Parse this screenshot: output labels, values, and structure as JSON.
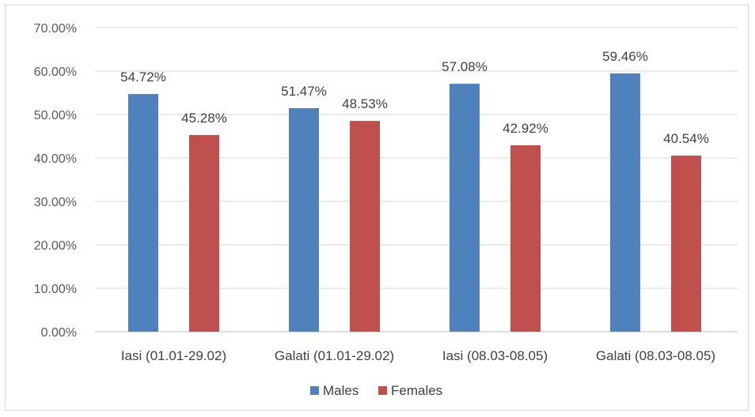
{
  "chart_data": {
    "type": "bar",
    "title": "",
    "xlabel": "",
    "ylabel": "",
    "categories": [
      "Iasi (01.01-29.02)",
      "Galati (01.01-29.02)",
      "Iasi (08.03-08.05)",
      "Galati (08.03-08.05)"
    ],
    "series": [
      {
        "name": "Males",
        "color": "#4f81bd",
        "values": [
          54.72,
          51.47,
          57.08,
          59.46
        ],
        "labels": [
          "54.72%",
          "51.47%",
          "57.08%",
          "59.46%"
        ]
      },
      {
        "name": "Females",
        "color": "#c0504d",
        "values": [
          45.28,
          48.53,
          42.92,
          40.54
        ],
        "labels": [
          "45.28%",
          "48.53%",
          "42.92%",
          "40.54%"
        ]
      }
    ],
    "ylim": [
      0,
      70
    ],
    "yticks": [
      "0.00%",
      "10.00%",
      "20.00%",
      "30.00%",
      "40.00%",
      "50.00%",
      "60.00%",
      "70.00%"
    ],
    "ytick_values": [
      0,
      10,
      20,
      30,
      40,
      50,
      60,
      70
    ],
    "grid": true,
    "legend_position": "bottom"
  }
}
